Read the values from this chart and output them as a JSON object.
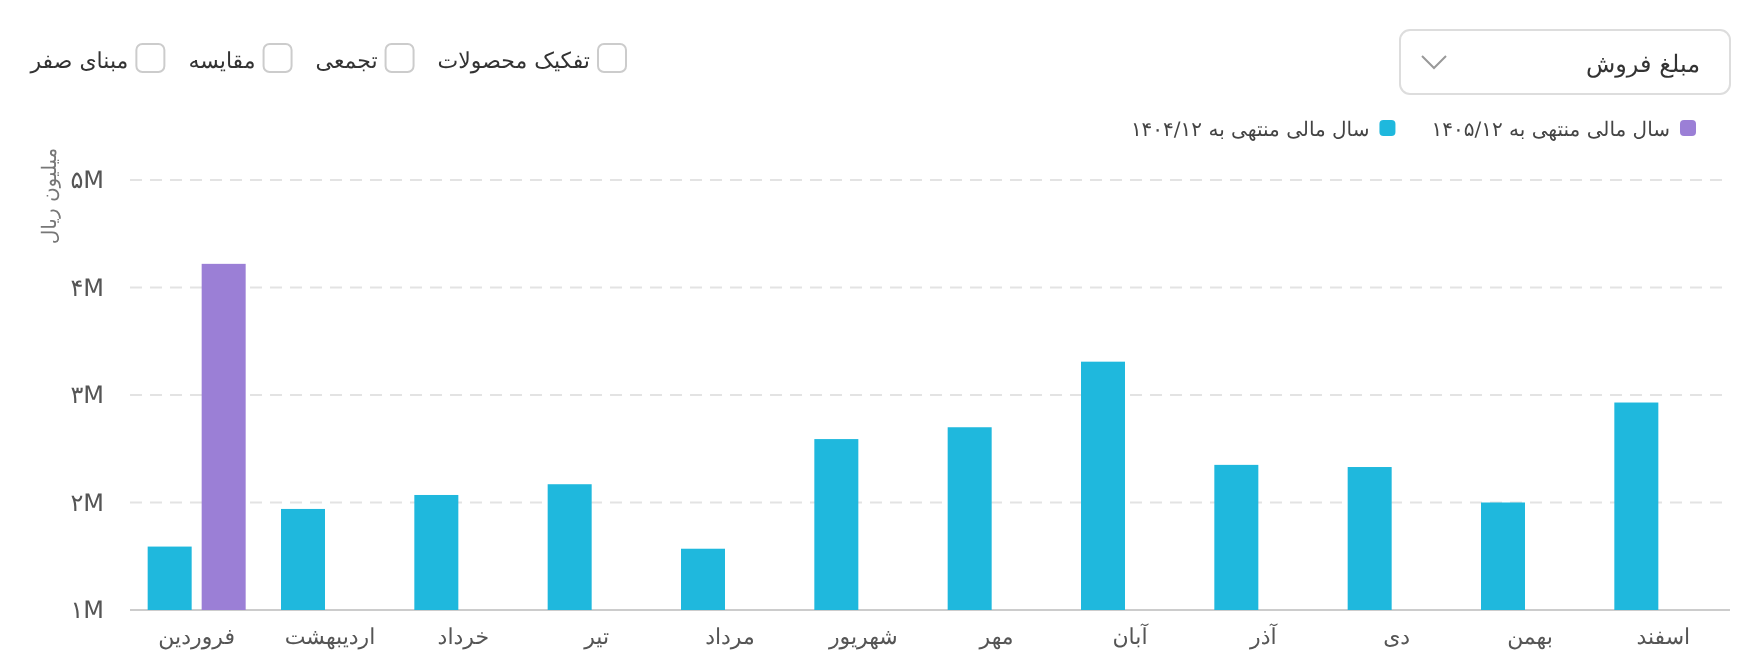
{
  "chart_data": [
    {
      "type": "bar",
      "ylabel": "میلیون ریال",
      "categories": [
        "فروردین",
        "اردیبهشت",
        "خرداد",
        "تیر",
        "مرداد",
        "شهریور",
        "مهر",
        "آبان",
        "آذر",
        "دی",
        "بهمن",
        "اسفند"
      ],
      "series": [
        {
          "name": "سال مالی منتهی به ۱۴۰۴/۱۲",
          "color": "#1fb8dd",
          "values": [
            1.59,
            1.94,
            2.07,
            2.17,
            1.57,
            2.59,
            2.7,
            3.31,
            2.35,
            2.33,
            2.0,
            2.93
          ]
        },
        {
          "name": "سال مالی منتهی به ۱۴۰۵/۱۲",
          "color": "#9b7fd6",
          "values": [
            4.22,
            null,
            null,
            null,
            null,
            null,
            null,
            null,
            null,
            null,
            null,
            null
          ]
        }
      ],
      "ylim": [
        1,
        5
      ],
      "yticks": [
        {
          "value": 1,
          "label": "۱M"
        },
        {
          "value": 2,
          "label": "۲M"
        },
        {
          "value": 3,
          "label": "۳M"
        },
        {
          "value": 4,
          "label": "۴M"
        },
        {
          "value": 5,
          "label": "۵M"
        }
      ],
      "grid": "y",
      "legend": "top right"
    },
    {
      "type": "other",
      "annotations": [
        "مبلغ فروش",
        "تفکیک محصولات",
        "تجمعی",
        "مقایسه",
        "مبنای صفر"
      ]
    }
  ]
}
